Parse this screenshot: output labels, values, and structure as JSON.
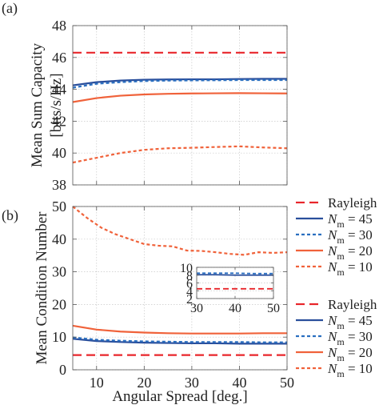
{
  "chart_data": [
    {
      "panel_label": "(a)",
      "type": "line",
      "ylabel_line1": "Mean Sum Capacity",
      "ylabel_line2": "[bits/s/Hz]",
      "xlabel": "",
      "xlim": [
        5,
        50
      ],
      "ylim": [
        38,
        48
      ],
      "xticks": [
        10,
        20,
        30,
        40,
        50
      ],
      "show_xticklabels": false,
      "yticks": [
        38,
        40,
        42,
        44,
        46,
        48
      ],
      "grid": true,
      "legend": "right",
      "legend_labels": [
        {
          "pre": "Rayleigh",
          "sub": "",
          "post": ""
        },
        {
          "pre": "N",
          "sub": "m",
          "post": " = 45"
        },
        {
          "pre": "N",
          "sub": "m",
          "post": " = 30"
        },
        {
          "pre": "N",
          "sub": "m",
          "post": " = 20"
        },
        {
          "pre": "N",
          "sub": "m",
          "post": " = 10"
        }
      ],
      "series": [
        {
          "color": "#e8262b",
          "dash": "dashed",
          "x": [
            5,
            50
          ],
          "y": [
            46.3,
            46.3
          ]
        },
        {
          "color": "#2a4f9c",
          "dash": "solid",
          "x": [
            5,
            10,
            15,
            20,
            25,
            30,
            35,
            40,
            45,
            50
          ],
          "y": [
            44.25,
            44.45,
            44.55,
            44.6,
            44.62,
            44.63,
            44.63,
            44.65,
            44.66,
            44.66
          ]
        },
        {
          "color": "#2a6fc0",
          "dash": "dotted",
          "x": [
            5,
            10,
            15,
            20,
            25,
            30,
            35,
            40,
            45,
            50
          ],
          "y": [
            44.1,
            44.35,
            44.45,
            44.52,
            44.55,
            44.56,
            44.57,
            44.58,
            44.58,
            44.58
          ]
        },
        {
          "color": "#f0623a",
          "dash": "solid",
          "x": [
            5,
            10,
            15,
            20,
            25,
            30,
            35,
            40,
            45,
            50
          ],
          "y": [
            43.2,
            43.45,
            43.6,
            43.68,
            43.72,
            43.74,
            43.75,
            43.76,
            43.75,
            43.74
          ]
        },
        {
          "color": "#f0623a",
          "dash": "dotted",
          "x": [
            5,
            10,
            15,
            20,
            25,
            30,
            35,
            40,
            45,
            50
          ],
          "y": [
            39.4,
            39.7,
            40.0,
            40.2,
            40.3,
            40.33,
            40.38,
            40.42,
            40.35,
            40.3
          ]
        }
      ]
    },
    {
      "panel_label": "(b)",
      "type": "line",
      "ylabel_line1": "Mean Condition Number",
      "ylabel_line2": "",
      "xlabel": "Angular Spread [deg.]",
      "xlim": [
        5,
        50
      ],
      "ylim": [
        0,
        50
      ],
      "xticks": [
        10,
        20,
        30,
        40,
        50
      ],
      "show_xticklabels": true,
      "yticks": [
        0,
        10,
        20,
        30,
        40,
        50
      ],
      "grid": true,
      "legend": "right",
      "legend_labels": [
        {
          "pre": "Rayleigh",
          "sub": "",
          "post": ""
        },
        {
          "pre": "N",
          "sub": "m",
          "post": " = 45"
        },
        {
          "pre": "N",
          "sub": "m",
          "post": " = 30"
        },
        {
          "pre": "N",
          "sub": "m",
          "post": " = 20"
        },
        {
          "pre": "N",
          "sub": "m",
          "post": " = 10"
        }
      ],
      "series": [
        {
          "color": "#e8262b",
          "dash": "dashed",
          "x": [
            5,
            50
          ],
          "y": [
            4.5,
            4.5
          ]
        },
        {
          "color": "#2a4f9c",
          "dash": "solid",
          "x": [
            5,
            10,
            15,
            20,
            25,
            30,
            35,
            40,
            45,
            50
          ],
          "y": [
            9.5,
            8.8,
            8.5,
            8.3,
            8.2,
            8.1,
            8.1,
            8.0,
            8.0,
            8.0
          ]
        },
        {
          "color": "#2a6fc0",
          "dash": "dotted",
          "x": [
            5,
            10,
            15,
            20,
            25,
            30,
            35,
            40,
            45,
            50
          ],
          "y": [
            9.9,
            9.2,
            8.9,
            8.7,
            8.6,
            8.5,
            8.5,
            8.5,
            8.4,
            8.4
          ]
        },
        {
          "color": "#f0623a",
          "dash": "solid",
          "x": [
            5,
            10,
            15,
            20,
            25,
            30,
            35,
            40,
            45,
            50
          ],
          "y": [
            13.5,
            12.3,
            11.7,
            11.4,
            11.2,
            11.1,
            11.1,
            11.1,
            11.2,
            11.2
          ]
        },
        {
          "color": "#f0623a",
          "dash": "dotted",
          "x": [
            5,
            8,
            11,
            14,
            17,
            20,
            23,
            26,
            29,
            32,
            35,
            38,
            41,
            44,
            47,
            50
          ],
          "y": [
            50.0,
            46.5,
            43.5,
            41.5,
            40.0,
            38.5,
            38.0,
            37.8,
            36.5,
            36.4,
            36.0,
            35.5,
            35.2,
            36.0,
            35.8,
            36.0
          ]
        }
      ],
      "inset": {
        "xlim": [
          30,
          50
        ],
        "ylim": [
          2,
          10
        ],
        "xticks": [
          30,
          40,
          50
        ],
        "yticks": [
          2,
          4,
          6,
          8,
          10
        ],
        "yticklabels": [
          "2",
          "4",
          "6",
          "8",
          "10"
        ],
        "grid": true,
        "series": [
          {
            "color": "#e8262b",
            "dash": "dashed",
            "x": [
              30,
              50
            ],
            "y": [
              4.5,
              4.5
            ]
          },
          {
            "color": "#2a4f9c",
            "dash": "solid",
            "x": [
              30,
              35,
              40,
              45,
              50
            ],
            "y": [
              8.1,
              8.1,
              8.0,
              8.0,
              8.0
            ]
          },
          {
            "color": "#2a6fc0",
            "dash": "dotted",
            "x": [
              30,
              35,
              40,
              45,
              50
            ],
            "y": [
              8.5,
              8.5,
              8.5,
              8.4,
              8.4
            ]
          }
        ]
      }
    }
  ]
}
